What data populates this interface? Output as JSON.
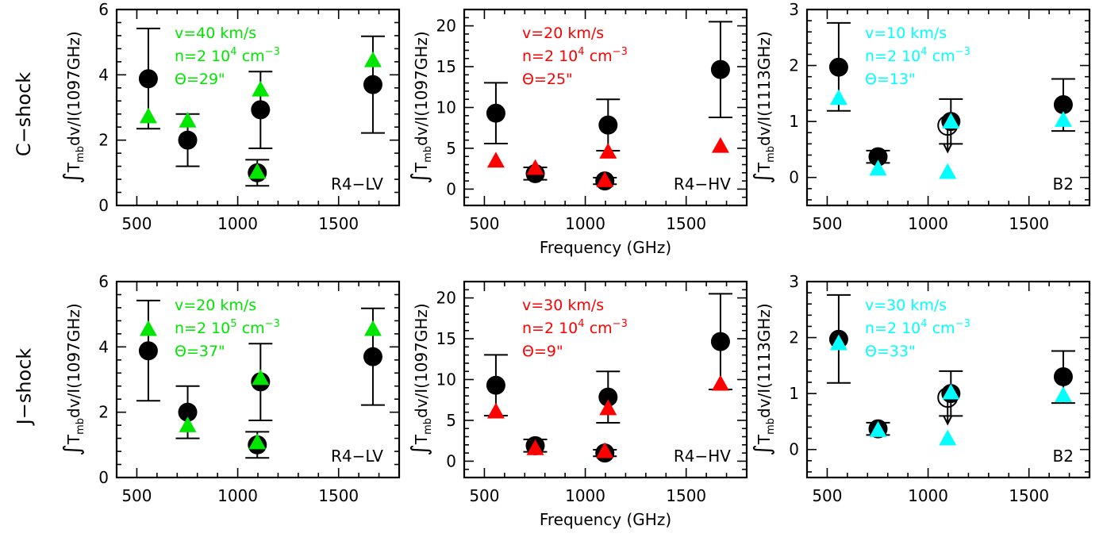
{
  "row_labels": [
    "C−shock",
    "J−shock"
  ],
  "ylabel_mb": "mb",
  "ylabel_tail_1097": "dv/I(1097GHz)",
  "ylabel_tail_1113": "dv/I(1113GHz)",
  "colors": {
    "green": "#00e600",
    "red": "#ff0000",
    "cyan": "#00ffff",
    "black": "#000000"
  },
  "chart_data": [
    {
      "type": "scatter",
      "row": 0,
      "col": 0,
      "panel_label": "R4−LV",
      "xlim": [
        400,
        1800
      ],
      "ylim": [
        0,
        6
      ],
      "xticks": [
        500,
        1000,
        1500
      ],
      "yticks": [
        0,
        2,
        4,
        6
      ],
      "xlabel": "",
      "model_color": "green",
      "annotations": [
        {
          "parts": [
            {
              "t": "v=40 km/s"
            }
          ]
        },
        {
          "parts": [
            {
              "t": "n=2 10"
            },
            {
              "t": "4",
              "sup": true
            },
            {
              "t": " cm"
            },
            {
              "t": "−3",
              "sup": true
            }
          ]
        },
        {
          "parts": [
            {
              "t": "Θ=29\""
            }
          ]
        }
      ],
      "observed": [
        {
          "x": 557,
          "y": 3.88,
          "err": [
            2.35,
            5.42
          ],
          "symbol": "filled"
        },
        {
          "x": 752,
          "y": 2.0,
          "err": [
            1.2,
            2.8
          ],
          "symbol": "filled"
        },
        {
          "x": 1097,
          "y": 1.0,
          "err": [
            0.6,
            1.4
          ],
          "symbol": "filled"
        },
        {
          "x": 1113,
          "y": 2.93,
          "err": [
            1.75,
            4.1
          ],
          "symbol": "filled"
        },
        {
          "x": 1670,
          "y": 3.7,
          "err": [
            2.22,
            5.18
          ],
          "symbol": "filled"
        }
      ],
      "model": [
        {
          "x": 557,
          "y": 2.73
        },
        {
          "x": 752,
          "y": 2.6
        },
        {
          "x": 1097,
          "y": 1.03
        },
        {
          "x": 1113,
          "y": 3.55
        },
        {
          "x": 1670,
          "y": 4.45
        }
      ]
    },
    {
      "type": "scatter",
      "row": 0,
      "col": 1,
      "panel_label": "R4−HV",
      "xlim": [
        400,
        1800
      ],
      "ylim": [
        -2,
        22
      ],
      "xticks": [
        500,
        1000,
        1500
      ],
      "yticks": [
        0,
        5,
        10,
        15,
        20
      ],
      "xlabel": "Frequency (GHz)",
      "model_color": "red",
      "annotations": [
        {
          "parts": [
            {
              "t": "v=20 km/s"
            }
          ]
        },
        {
          "parts": [
            {
              "t": "n=2 10"
            },
            {
              "t": "4",
              "sup": true
            },
            {
              "t": " cm"
            },
            {
              "t": "−3",
              "sup": true
            }
          ]
        },
        {
          "parts": [
            {
              "t": "Θ=25\""
            }
          ]
        }
      ],
      "observed": [
        {
          "x": 557,
          "y": 9.3,
          "err": [
            5.58,
            13.02
          ],
          "symbol": "filled"
        },
        {
          "x": 752,
          "y": 1.9,
          "err": [
            1.14,
            2.66
          ],
          "symbol": "filled"
        },
        {
          "x": 1097,
          "y": 1.0,
          "err": [
            0.6,
            1.4
          ],
          "symbol": "filled"
        },
        {
          "x": 1113,
          "y": 7.85,
          "err": [
            4.71,
            10.99
          ],
          "symbol": "filled"
        },
        {
          "x": 1670,
          "y": 14.65,
          "err": [
            8.79,
            20.51
          ],
          "symbol": "filled"
        }
      ],
      "model": [
        {
          "x": 557,
          "y": 3.5
        },
        {
          "x": 752,
          "y": 2.6
        },
        {
          "x": 1097,
          "y": 1.1
        },
        {
          "x": 1113,
          "y": 4.6
        },
        {
          "x": 1670,
          "y": 5.3
        }
      ]
    },
    {
      "type": "scatter",
      "row": 0,
      "col": 2,
      "panel_label": "B2",
      "xlim": [
        400,
        1800
      ],
      "ylim": [
        -0.5,
        3
      ],
      "xticks": [
        500,
        1000,
        1500
      ],
      "yticks": [
        0,
        1,
        2,
        3
      ],
      "xlabel": "",
      "model_color": "cyan",
      "annotations": [
        {
          "parts": [
            {
              "t": "v=10 km/s"
            }
          ]
        },
        {
          "parts": [
            {
              "t": "n=2 10"
            },
            {
              "t": "4",
              "sup": true
            },
            {
              "t": " cm"
            },
            {
              "t": "−3",
              "sup": true
            }
          ]
        },
        {
          "parts": [
            {
              "t": "Θ=13\""
            }
          ]
        }
      ],
      "observed": [
        {
          "x": 557,
          "y": 1.97,
          "err": [
            1.19,
            2.76
          ],
          "symbol": "filled"
        },
        {
          "x": 752,
          "y": 0.37,
          "err": [
            0.26,
            0.48
          ],
          "symbol": "filled"
        },
        {
          "x": 1097,
          "y": 0.93,
          "err": null,
          "symbol": "open-upper-limit",
          "arrow_to": 0.6
        },
        {
          "x": 1113,
          "y": 1.0,
          "err": [
            0.6,
            1.4
          ],
          "symbol": "filled"
        },
        {
          "x": 1670,
          "y": 1.3,
          "err": [
            0.83,
            1.76
          ],
          "symbol": "filled"
        }
      ],
      "model": [
        {
          "x": 557,
          "y": 1.42
        },
        {
          "x": 752,
          "y": 0.16
        },
        {
          "x": 1097,
          "y": 0.1
        },
        {
          "x": 1113,
          "y": 1.0
        },
        {
          "x": 1670,
          "y": 1.03
        }
      ]
    },
    {
      "type": "scatter",
      "row": 1,
      "col": 0,
      "panel_label": "R4−LV",
      "xlim": [
        400,
        1800
      ],
      "ylim": [
        0,
        6
      ],
      "xticks": [
        500,
        1000,
        1500
      ],
      "yticks": [
        0,
        2,
        4,
        6
      ],
      "xlabel": "",
      "model_color": "green",
      "annotations": [
        {
          "parts": [
            {
              "t": "v=20 km/s"
            }
          ]
        },
        {
          "parts": [
            {
              "t": "n=2 10"
            },
            {
              "t": "5",
              "sup": true
            },
            {
              "t": " cm"
            },
            {
              "t": "−3",
              "sup": true
            }
          ]
        },
        {
          "parts": [
            {
              "t": "Θ=37\""
            }
          ]
        }
      ],
      "observed": [
        {
          "x": 557,
          "y": 3.88,
          "err": [
            2.35,
            5.42
          ],
          "symbol": "filled"
        },
        {
          "x": 752,
          "y": 2.0,
          "err": [
            1.2,
            2.8
          ],
          "symbol": "filled"
        },
        {
          "x": 1097,
          "y": 1.0,
          "err": [
            0.6,
            1.4
          ],
          "symbol": "filled"
        },
        {
          "x": 1113,
          "y": 2.93,
          "err": [
            1.75,
            4.1
          ],
          "symbol": "filled"
        },
        {
          "x": 1670,
          "y": 3.7,
          "err": [
            2.22,
            5.18
          ],
          "symbol": "filled"
        }
      ],
      "model": [
        {
          "x": 557,
          "y": 4.55
        },
        {
          "x": 752,
          "y": 1.6
        },
        {
          "x": 1097,
          "y": 1.08
        },
        {
          "x": 1113,
          "y": 3.05
        },
        {
          "x": 1670,
          "y": 4.55
        }
      ]
    },
    {
      "type": "scatter",
      "row": 1,
      "col": 1,
      "panel_label": "R4−HV",
      "xlim": [
        400,
        1800
      ],
      "ylim": [
        -2,
        22
      ],
      "xticks": [
        500,
        1000,
        1500
      ],
      "yticks": [
        0,
        5,
        10,
        15,
        20
      ],
      "xlabel": "Frequency (GHz)",
      "model_color": "red",
      "annotations": [
        {
          "parts": [
            {
              "t": "v=30 km/s"
            }
          ]
        },
        {
          "parts": [
            {
              "t": "n=2 10"
            },
            {
              "t": "4",
              "sup": true
            },
            {
              "t": " cm"
            },
            {
              "t": "−3",
              "sup": true
            }
          ]
        },
        {
          "parts": [
            {
              "t": "Θ=9\""
            }
          ]
        }
      ],
      "observed": [
        {
          "x": 557,
          "y": 9.3,
          "err": [
            5.58,
            13.02
          ],
          "symbol": "filled"
        },
        {
          "x": 752,
          "y": 1.9,
          "err": [
            1.14,
            2.66
          ],
          "symbol": "filled"
        },
        {
          "x": 1097,
          "y": 1.0,
          "err": [
            0.6,
            1.4
          ],
          "symbol": "filled"
        },
        {
          "x": 1113,
          "y": 7.85,
          "err": [
            4.71,
            10.99
          ],
          "symbol": "filled"
        },
        {
          "x": 1670,
          "y": 14.65,
          "err": [
            8.79,
            20.51
          ],
          "symbol": "filled"
        }
      ],
      "model": [
        {
          "x": 557,
          "y": 6.1
        },
        {
          "x": 752,
          "y": 1.6
        },
        {
          "x": 1097,
          "y": 1.25
        },
        {
          "x": 1113,
          "y": 6.5
        },
        {
          "x": 1670,
          "y": 9.5
        }
      ]
    },
    {
      "type": "scatter",
      "row": 1,
      "col": 2,
      "panel_label": "B2",
      "xlim": [
        400,
        1800
      ],
      "ylim": [
        -0.5,
        3
      ],
      "xticks": [
        500,
        1000,
        1500
      ],
      "yticks": [
        0,
        1,
        2,
        3
      ],
      "xlabel": "",
      "model_color": "cyan",
      "annotations": [
        {
          "parts": [
            {
              "t": "v=30 km/s"
            }
          ]
        },
        {
          "parts": [
            {
              "t": "n=2 10"
            },
            {
              "t": "4",
              "sup": true
            },
            {
              "t": " cm"
            },
            {
              "t": "−3",
              "sup": true
            }
          ]
        },
        {
          "parts": [
            {
              "t": "Θ=33\""
            }
          ]
        }
      ],
      "observed": [
        {
          "x": 557,
          "y": 1.97,
          "err": [
            1.19,
            2.76
          ],
          "symbol": "filled"
        },
        {
          "x": 752,
          "y": 0.37,
          "err": [
            0.26,
            0.48
          ],
          "symbol": "filled"
        },
        {
          "x": 1097,
          "y": 0.93,
          "err": null,
          "symbol": "open-upper-limit",
          "arrow_to": 0.6
        },
        {
          "x": 1113,
          "y": 1.0,
          "err": [
            0.6,
            1.4
          ],
          "symbol": "filled"
        },
        {
          "x": 1670,
          "y": 1.3,
          "err": [
            0.83,
            1.76
          ],
          "symbol": "filled"
        }
      ],
      "model": [
        {
          "x": 557,
          "y": 1.9
        },
        {
          "x": 752,
          "y": 0.35
        },
        {
          "x": 1097,
          "y": 0.2
        },
        {
          "x": 1113,
          "y": 1.02
        },
        {
          "x": 1670,
          "y": 0.97
        }
      ]
    }
  ]
}
